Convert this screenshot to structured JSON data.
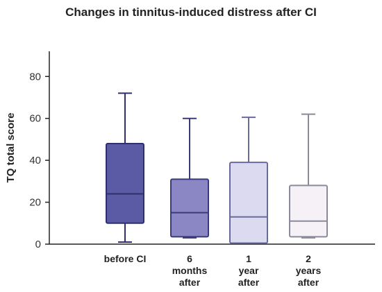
{
  "chart_data": {
    "type": "box",
    "title": "Changes in tinnitus-induced distress after CI",
    "ylabel": "TQ total score",
    "xlabel": "",
    "ylim": [
      0,
      92
    ],
    "yticks": [
      0,
      20,
      40,
      60,
      80
    ],
    "grid": false,
    "legend": "none",
    "categories": [
      {
        "lines": [
          "before CI"
        ]
      },
      {
        "lines": [
          "6",
          "months",
          "after"
        ]
      },
      {
        "lines": [
          "1",
          "year",
          "after"
        ]
      },
      {
        "lines": [
          "2",
          "years",
          "after"
        ]
      }
    ],
    "boxes": [
      {
        "min": 1,
        "q1": 10,
        "median": 24,
        "q3": 48,
        "max": 72,
        "fill": "#5a5aa5",
        "stroke": "#2f2f6a"
      },
      {
        "min": 3,
        "q1": 3.5,
        "median": 15,
        "q3": 31,
        "max": 60,
        "fill": "#8b86c4",
        "stroke": "#3a3a78"
      },
      {
        "min": 0.5,
        "q1": 0.5,
        "median": 13,
        "q3": 39,
        "max": 60.5,
        "fill": "#dcdaf0",
        "stroke": "#6a6a9a"
      },
      {
        "min": 3,
        "q1": 3.5,
        "median": 11,
        "q3": 28,
        "max": 62,
        "fill": "#f5f1f7",
        "stroke": "#8a8a9a"
      }
    ]
  }
}
